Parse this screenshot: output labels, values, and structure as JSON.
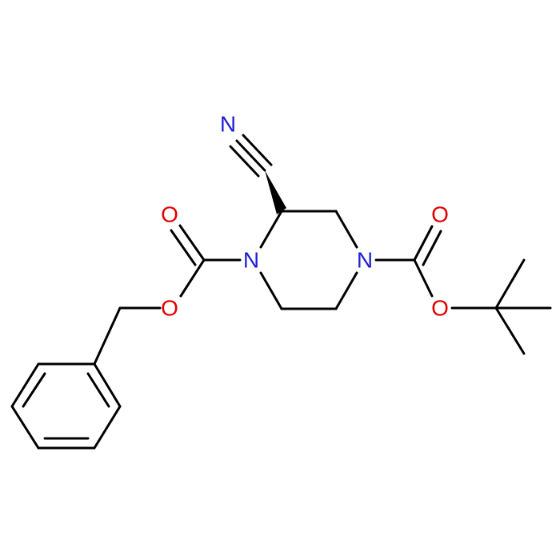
{
  "atoms": [
    {
      "label": "N"
    },
    {
      "label": "N"
    },
    {
      "label": "N"
    },
    {
      "label": "O"
    },
    {
      "label": "O"
    },
    {
      "label": "O"
    },
    {
      "label": "O"
    }
  ]
}
